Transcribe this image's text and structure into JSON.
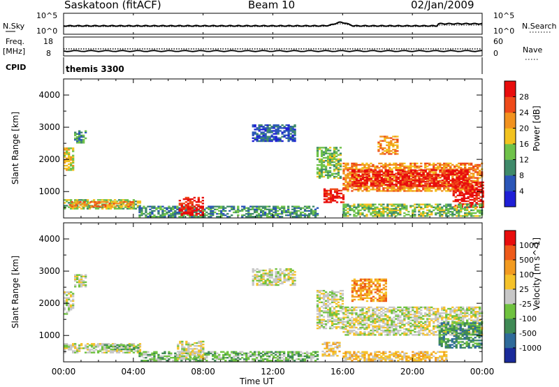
{
  "header": {
    "station": "Saskatoon (fitACF)",
    "beam": "Beam 10",
    "date": "02/Jan/2009"
  },
  "top_panels": {
    "nsky_label": "N.Sky",
    "nsky_ticks": [
      "10^5",
      "10^0"
    ],
    "nsearch_label": "N.Search",
    "nsearch_ticks": [
      "10^5",
      "10^0"
    ],
    "freq_label_1": "Freq.",
    "freq_label_2": "[MHz]",
    "freq_ticks": [
      "18",
      "8"
    ],
    "nave_label": "Nave",
    "nave_ticks": [
      "60",
      "0"
    ],
    "cpid_label": "CPID",
    "cpid_text": "themis 3300"
  },
  "chart_data": [
    {
      "type": "heatmap",
      "name": "power",
      "ylabel": "Slant Range [km]",
      "yticks": [
        "4000",
        "3000",
        "2000",
        "1000"
      ],
      "ylim": [
        180,
        4500
      ],
      "xlim_hours": [
        0,
        24
      ],
      "colorbar_label": "Power [dB]",
      "colorbar_ticks": [
        "28",
        "24",
        "20",
        "16",
        "12",
        "8",
        "4"
      ],
      "colors": [
        "#1f1fd6",
        "#2b56b8",
        "#3f8a6a",
        "#6fc24a",
        "#f2c21f",
        "#f2921f",
        "#ee4a1a",
        "#e80d0d"
      ],
      "regions": [
        {
          "t0": 0.0,
          "t1": 0.6,
          "r0": 1650,
          "r1": 2350,
          "level": 4
        },
        {
          "t0": 0.6,
          "t1": 1.3,
          "r0": 2500,
          "r1": 2900,
          "level": 2
        },
        {
          "t0": 0.0,
          "t1": 4.4,
          "r0": 450,
          "r1": 750,
          "level": 3
        },
        {
          "t0": 0.3,
          "t1": 4.0,
          "r0": 520,
          "r1": 660,
          "level": 5
        },
        {
          "t0": 4.3,
          "t1": 14.5,
          "r0": 200,
          "r1": 520,
          "level": 2
        },
        {
          "t0": 6.6,
          "t1": 8.0,
          "r0": 250,
          "r1": 820,
          "level": 7
        },
        {
          "t0": 10.8,
          "t1": 13.2,
          "r0": 2550,
          "r1": 3050,
          "level": 1
        },
        {
          "t0": 14.5,
          "t1": 15.9,
          "r0": 1400,
          "r1": 2350,
          "level": 3
        },
        {
          "t0": 14.9,
          "t1": 16.0,
          "r0": 650,
          "r1": 1100,
          "level": 7
        },
        {
          "t0": 16.0,
          "t1": 24.0,
          "r0": 1000,
          "r1": 1900,
          "level": 5
        },
        {
          "t0": 16.5,
          "t1": 23.2,
          "r0": 1150,
          "r1": 1650,
          "level": 7
        },
        {
          "t0": 18.0,
          "t1": 19.2,
          "r0": 2150,
          "r1": 2700,
          "level": 5
        },
        {
          "t0": 22.3,
          "t1": 24.0,
          "r0": 500,
          "r1": 1300,
          "level": 7
        },
        {
          "t0": 16.0,
          "t1": 24.0,
          "r0": 220,
          "r1": 600,
          "level": 3
        }
      ]
    },
    {
      "type": "heatmap",
      "name": "velocity",
      "ylabel": "Slant Range [km]",
      "yticks": [
        "4000",
        "3000",
        "2000",
        "1000"
      ],
      "ylim": [
        180,
        4500
      ],
      "xlim_hours": [
        0,
        24
      ],
      "colorbar_label": "Velocity [m s^-1]",
      "colorbar_ticks": [
        "1000",
        "500",
        "100",
        "25",
        "-25",
        "-100",
        "-500",
        "-1000"
      ],
      "colors": [
        "#1a2a9a",
        "#2f6b9a",
        "#3f8a55",
        "#6fc23f",
        "#c7c7c7",
        "#f5c22a",
        "#f29a20",
        "#ee5a1a",
        "#e80d0d"
      ],
      "regions": [
        {
          "t0": 0.0,
          "t1": 0.6,
          "r0": 1650,
          "r1": 2350,
          "level": 4
        },
        {
          "t0": 0.6,
          "t1": 1.3,
          "r0": 2500,
          "r1": 2900,
          "level": 4
        },
        {
          "t0": 0.0,
          "t1": 4.4,
          "r0": 450,
          "r1": 750,
          "level": 4
        },
        {
          "t0": 2.3,
          "t1": 4.3,
          "r0": 550,
          "r1": 700,
          "level": 3
        },
        {
          "t0": 4.3,
          "t1": 14.5,
          "r0": 200,
          "r1": 500,
          "level": 3
        },
        {
          "t0": 6.5,
          "t1": 8.0,
          "r0": 250,
          "r1": 800,
          "level": 4
        },
        {
          "t0": 10.8,
          "t1": 13.2,
          "r0": 2550,
          "r1": 3050,
          "level": 4
        },
        {
          "t0": 14.5,
          "t1": 16.0,
          "r0": 1200,
          "r1": 2400,
          "level": 4
        },
        {
          "t0": 14.8,
          "t1": 15.8,
          "r0": 350,
          "r1": 800,
          "level": 5
        },
        {
          "t0": 16.0,
          "t1": 24.0,
          "r0": 1000,
          "r1": 1900,
          "level": 4
        },
        {
          "t0": 21.5,
          "t1": 24.0,
          "r0": 600,
          "r1": 1400,
          "level": 2
        },
        {
          "t0": 16.0,
          "t1": 22.0,
          "r0": 200,
          "r1": 500,
          "level": 5
        },
        {
          "t0": 16.5,
          "t1": 18.5,
          "r0": 2050,
          "r1": 2750,
          "level": 6
        }
      ]
    }
  ],
  "xaxis": {
    "ticks": [
      "00:00",
      "04:00",
      "08:00",
      "12:00",
      "16:00",
      "20:00",
      "00:00"
    ],
    "label": "Time UT"
  }
}
